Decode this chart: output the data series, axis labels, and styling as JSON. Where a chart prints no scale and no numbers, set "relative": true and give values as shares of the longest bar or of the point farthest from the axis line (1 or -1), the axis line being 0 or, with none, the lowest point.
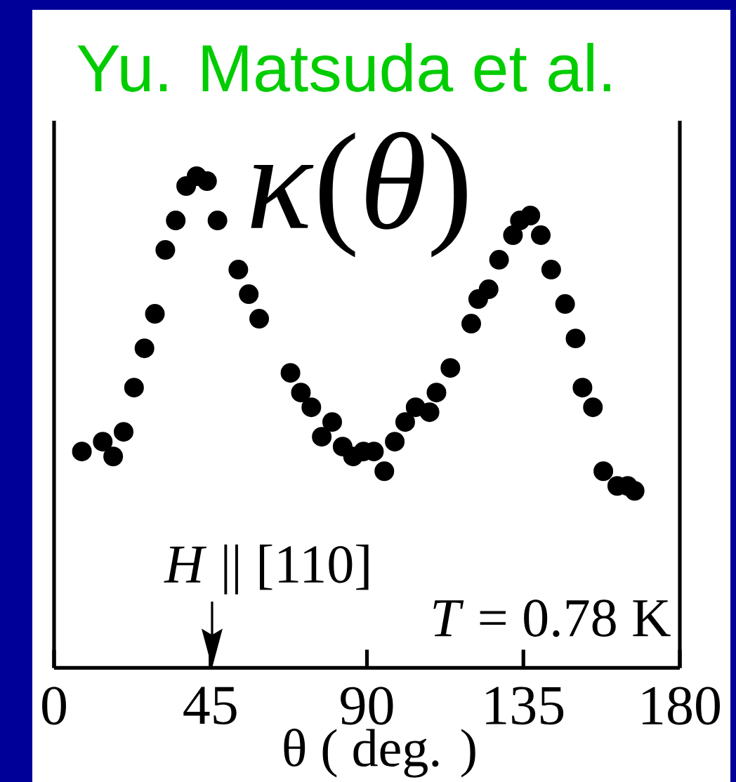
{
  "chart_data": {
    "type": "scatter",
    "title": "Yu. Matsuda et al.",
    "xlabel": "θ ( deg. )",
    "relative": true,
    "marker": "circle",
    "color": "#000000",
    "x": [
      8,
      14,
      17,
      20,
      23,
      26,
      29,
      32,
      35,
      38,
      41,
      44,
      47,
      53,
      56,
      59,
      68,
      71,
      74,
      77,
      80,
      83,
      86,
      89,
      92,
      95,
      98,
      101,
      104,
      108,
      110,
      114,
      120,
      122,
      125,
      128,
      132,
      134,
      137,
      140,
      143,
      147,
      150,
      152,
      155,
      158,
      162,
      165,
      167
    ],
    "values": [
      0.44,
      0.46,
      0.43,
      0.48,
      0.57,
      0.65,
      0.72,
      0.85,
      0.91,
      0.98,
      1.0,
      0.99,
      0.91,
      0.81,
      0.76,
      0.71,
      0.6,
      0.56,
      0.53,
      0.47,
      0.5,
      0.45,
      0.43,
      0.44,
      0.44,
      0.4,
      0.46,
      0.5,
      0.53,
      0.52,
      0.56,
      0.61,
      0.7,
      0.75,
      0.77,
      0.83,
      0.88,
      0.91,
      0.92,
      0.88,
      0.81,
      0.74,
      0.67,
      0.57,
      0.53,
      0.4,
      0.37,
      0.37,
      0.36
    ],
    "xlim": [
      0,
      180
    ],
    "xticks": [
      0,
      45,
      90,
      135,
      180
    ],
    "annotations": [
      "*κ*(*θ*)",
      "*H* || [110]",
      "*T* = 0.78 K"
    ]
  }
}
